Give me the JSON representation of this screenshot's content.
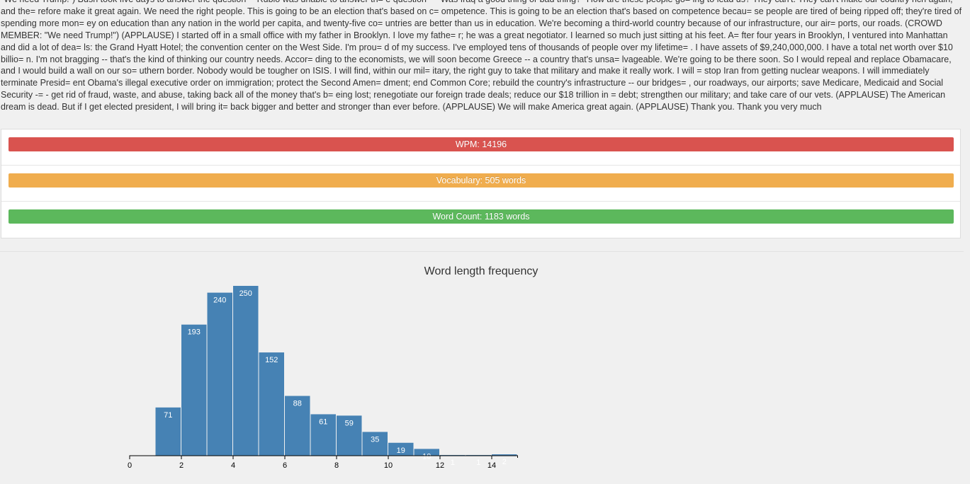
{
  "speech": {
    "text": "\"We need Trump!\") Bush took five days to answer the question -- Rubio was unable to answer th= e question -- \"Was Iraq a good thing or bad thing?\" How are these people go= ing to lead us? They can't. They can't make our country rich again, and the= refore make it great again. We need the right people. This is going to be an election that's based on c= ompetence. This is going to be an election that's based on competence becau= se people are tired of being ripped off; they're tired of spending more mon= ey on education than any nation in the world per capita, and twenty-five co= untries are better than us in education. We're becoming a third-world country because of our infrastructure, our air= ports, our roads. (CROWD MEMBER: \"We need Trump!\") (APPLAUSE) I started off in a small office with my father in Brooklyn. I love my fathe= r; he was a great negotiator. I learned so much just sitting at his feet. A= fter four years in Brooklyn, I ventured into Manhattan and did a lot of dea= ls: the Grand Hyatt Hotel; the convention center on the West Side. I'm prou= d of my success. I've employed tens of thousands of people over my lifetime= . I have assets of $9,240,000,000. I have a total net worth over $10 billio= n. I'm not bragging -- that's the kind of thinking our country needs. Accor= ding to the economists, we will soon become Greece -- a country that's unsa= lvageable. We're going to be there soon. So I would repeal and replace Obamacare, and I would build a wall on our so= uthern border. Nobody would be tougher on ISIS. I will find, within our mil= itary, the right guy to take that military and make it really work. I will = stop Iran from getting nuclear weapons. I will immediately terminate Presid= ent Obama's illegal executive order on immigration; protect the Second Amen= dment; end Common Core; rebuild the country's infrastructure -- our bridges= , our roadways, our airports; save Medicare, Medicaid and Social Security -= - get rid of fraud, waste, and abuse, taking back all of the money that's b= eing lost; renegotiate our foreign trade deals; reduce our $18 trillion in = debt; strengthen our military; and take care of our vets. (APPLAUSE) The American dream is dead. But if I get elected president, I will bring it= back bigger and better and stronger than ever before. (APPLAUSE) We will make America great again. (APPLAUSE) Thank you. Thank you very much"
  },
  "stats": [
    {
      "id": "wpm",
      "label": "WPM: 14196",
      "color": "#d9534f"
    },
    {
      "id": "vocabulary",
      "label": "Vocabulary: 505 words",
      "color": "#f0ad4e"
    },
    {
      "id": "word-count",
      "label": "Word Count: 1183 words",
      "color": "#5cb85c"
    }
  ],
  "chart_data": {
    "type": "bar",
    "title": "Word length frequency",
    "xlabel": "",
    "ylabel": "",
    "bar_color": "#4682b4",
    "xlim": [
      0,
      15
    ],
    "ylim": [
      0,
      250
    ],
    "x_ticks": [
      0,
      2,
      4,
      6,
      8,
      10,
      12,
      14
    ],
    "bins": [
      {
        "x0": 1,
        "x1": 2,
        "value": 71
      },
      {
        "x0": 2,
        "x1": 3,
        "value": 193
      },
      {
        "x0": 3,
        "x1": 4,
        "value": 240
      },
      {
        "x0": 4,
        "x1": 5,
        "value": 250
      },
      {
        "x0": 5,
        "x1": 6,
        "value": 152
      },
      {
        "x0": 6,
        "x1": 7,
        "value": 88
      },
      {
        "x0": 7,
        "x1": 8,
        "value": 61
      },
      {
        "x0": 8,
        "x1": 9,
        "value": 59
      },
      {
        "x0": 9,
        "x1": 10,
        "value": 35
      },
      {
        "x0": 10,
        "x1": 11,
        "value": 19
      },
      {
        "x0": 11,
        "x1": 12,
        "value": 10
      },
      {
        "x0": 12,
        "x1": 13,
        "value": 1
      },
      {
        "x0": 13,
        "x1": 14,
        "value": 1
      },
      {
        "x0": 14,
        "x1": 15,
        "value": 2
      }
    ],
    "grid": false,
    "legend": "none"
  }
}
